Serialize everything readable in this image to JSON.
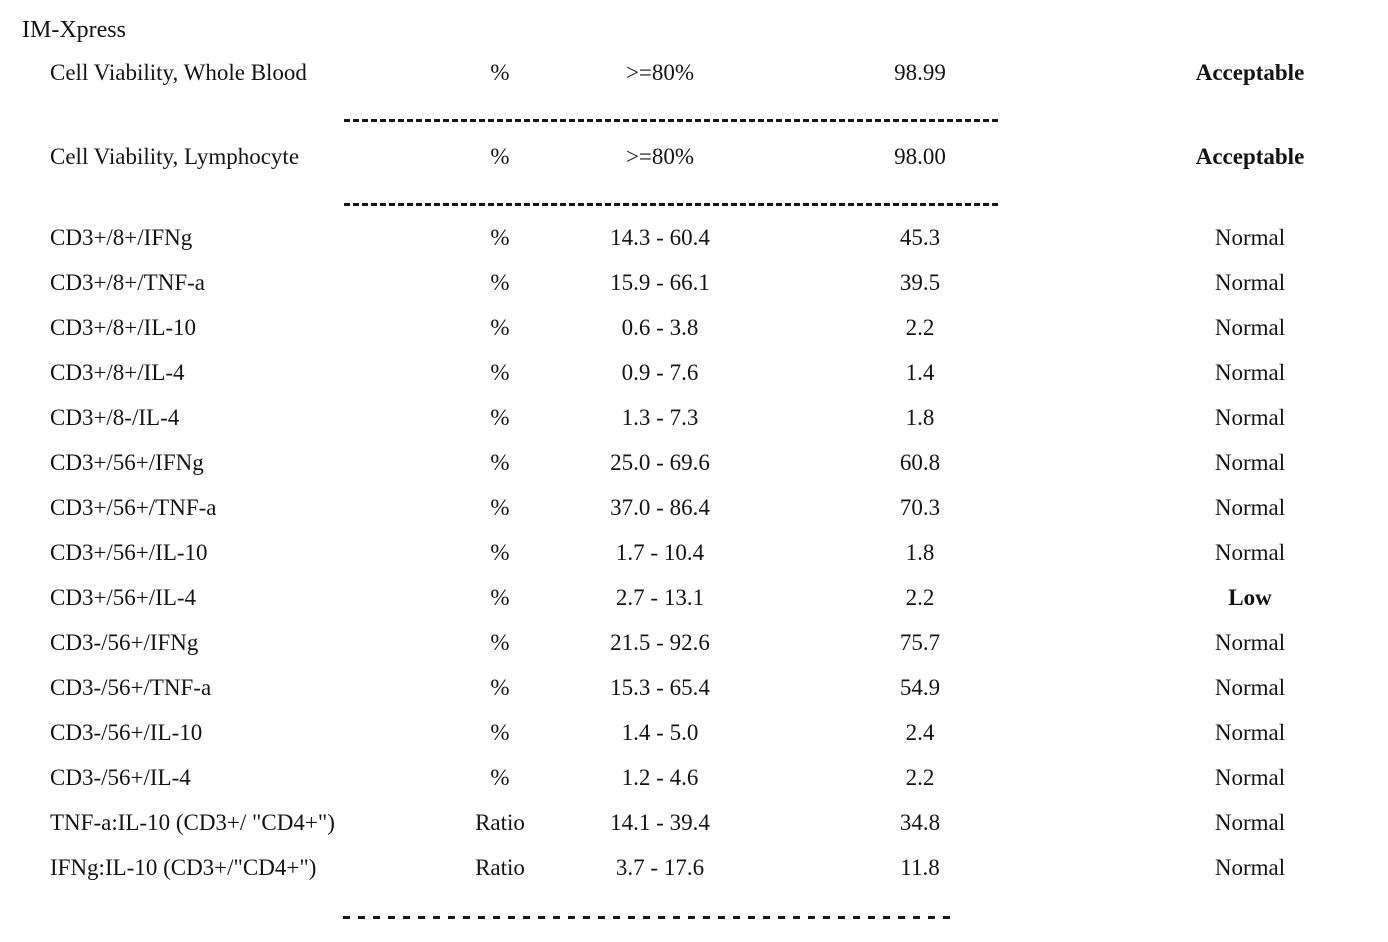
{
  "document": {
    "title": "IM-Xpress",
    "colors": {
      "text": "#131313",
      "background": "#ffffff"
    },
    "statuses_rendered_bold": [
      "Acceptable",
      "Low"
    ],
    "rows": [
      {
        "name": "Cell Viability, Whole Blood",
        "unit": "%",
        "range": ">=80%",
        "value": "98.99",
        "status": "Acceptable"
      },
      {
        "name": "Cell Viability, Lymphocyte",
        "unit": "%",
        "range": ">=80%",
        "value": "98.00",
        "status": "Acceptable"
      },
      {
        "name": "CD3+/8+/IFNg",
        "unit": "%",
        "range": "14.3 - 60.4",
        "value": "45.3",
        "status": "Normal"
      },
      {
        "name": "CD3+/8+/TNF-a",
        "unit": "%",
        "range": "15.9 - 66.1",
        "value": "39.5",
        "status": "Normal"
      },
      {
        "name": "CD3+/8+/IL-10",
        "unit": "%",
        "range": "0.6 - 3.8",
        "value": "2.2",
        "status": "Normal"
      },
      {
        "name": "CD3+/8+/IL-4",
        "unit": "%",
        "range": "0.9 - 7.6",
        "value": "1.4",
        "status": "Normal"
      },
      {
        "name": "CD3+/8-/IL-4",
        "unit": "%",
        "range": "1.3 - 7.3",
        "value": "1.8",
        "status": "Normal"
      },
      {
        "name": "CD3+/56+/IFNg",
        "unit": "%",
        "range": "25.0 - 69.6",
        "value": "60.8",
        "status": "Normal"
      },
      {
        "name": "CD3+/56+/TNF-a",
        "unit": "%",
        "range": "37.0 - 86.4",
        "value": "70.3",
        "status": "Normal"
      },
      {
        "name": "CD3+/56+/IL-10",
        "unit": "%",
        "range": "1.7 - 10.4",
        "value": "1.8",
        "status": "Normal"
      },
      {
        "name": "CD3+/56+/IL-4",
        "unit": "%",
        "range": "2.7 - 13.1",
        "value": "2.2",
        "status": "Low"
      },
      {
        "name": "CD3-/56+/IFNg",
        "unit": "%",
        "range": "21.5 - 92.6",
        "value": "75.7",
        "status": "Normal"
      },
      {
        "name": "CD3-/56+/TNF-a",
        "unit": "%",
        "range": "15.3 - 65.4",
        "value": "54.9",
        "status": "Normal"
      },
      {
        "name": "CD3-/56+/IL-10",
        "unit": "%",
        "range": "1.4 - 5.0",
        "value": "2.4",
        "status": "Normal"
      },
      {
        "name": "CD3-/56+/IL-4",
        "unit": "%",
        "range": "1.2 - 4.6",
        "value": "2.2",
        "status": "Normal"
      },
      {
        "name": "TNF-a:IL-10 (CD3+/ \"CD4+\")",
        "unit": "Ratio",
        "range": "14.1 - 39.4",
        "value": "34.8",
        "status": "Normal"
      },
      {
        "name": "IFNg:IL-10 (CD3+/\"CD4+\")",
        "unit": "Ratio",
        "range": "3.7 - 17.6",
        "value": "11.8",
        "status": "Normal"
      }
    ]
  }
}
